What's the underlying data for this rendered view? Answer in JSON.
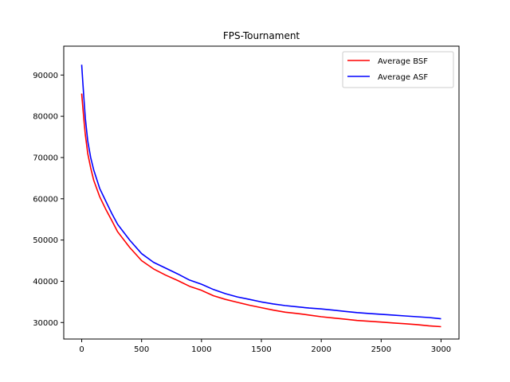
{
  "chart_data": {
    "type": "line",
    "title": "FPS-Tournament",
    "xlabel": "",
    "ylabel": "",
    "xlim": [
      -150,
      3150
    ],
    "ylim": [
      26000,
      97000
    ],
    "xticks": [
      0,
      500,
      1000,
      1500,
      2000,
      2500,
      3000
    ],
    "yticks": [
      30000,
      40000,
      50000,
      60000,
      70000,
      80000,
      90000
    ],
    "grid": false,
    "legend": "top-right",
    "series": [
      {
        "name": "Average BSF",
        "color": "#ff0000",
        "x": [
          0,
          10,
          20,
          30,
          50,
          75,
          100,
          150,
          200,
          250,
          300,
          400,
          500,
          600,
          700,
          800,
          900,
          1000,
          1100,
          1200,
          1300,
          1400,
          1500,
          1600,
          1700,
          1800,
          1900,
          2000,
          2100,
          2200,
          2300,
          2400,
          2500,
          2600,
          2700,
          2800,
          2900,
          3000
        ],
        "values": [
          85500,
          82000,
          78500,
          75500,
          71000,
          67500,
          64500,
          60500,
          57500,
          54800,
          52000,
          48200,
          45000,
          43000,
          41500,
          40200,
          38800,
          37800,
          36500,
          35600,
          34900,
          34200,
          33600,
          33000,
          32500,
          32200,
          31800,
          31400,
          31100,
          30800,
          30500,
          30300,
          30100,
          29900,
          29700,
          29500,
          29200,
          29000
        ]
      },
      {
        "name": "Average ASF",
        "color": "#0000ff",
        "x": [
          0,
          10,
          20,
          30,
          50,
          75,
          100,
          150,
          200,
          250,
          300,
          400,
          500,
          600,
          700,
          800,
          900,
          1000,
          1100,
          1200,
          1300,
          1400,
          1500,
          1600,
          1700,
          1800,
          1900,
          2000,
          2100,
          2200,
          2300,
          2400,
          2500,
          2600,
          2700,
          2800,
          2900,
          3000
        ],
        "values": [
          92500,
          88000,
          83500,
          79500,
          74000,
          70000,
          67000,
          62500,
          59500,
          56500,
          53800,
          50000,
          46700,
          44600,
          43200,
          41800,
          40300,
          39300,
          38000,
          37000,
          36200,
          35600,
          35000,
          34500,
          34100,
          33800,
          33500,
          33300,
          33000,
          32700,
          32400,
          32200,
          32000,
          31800,
          31600,
          31400,
          31200,
          30900
        ]
      }
    ]
  }
}
